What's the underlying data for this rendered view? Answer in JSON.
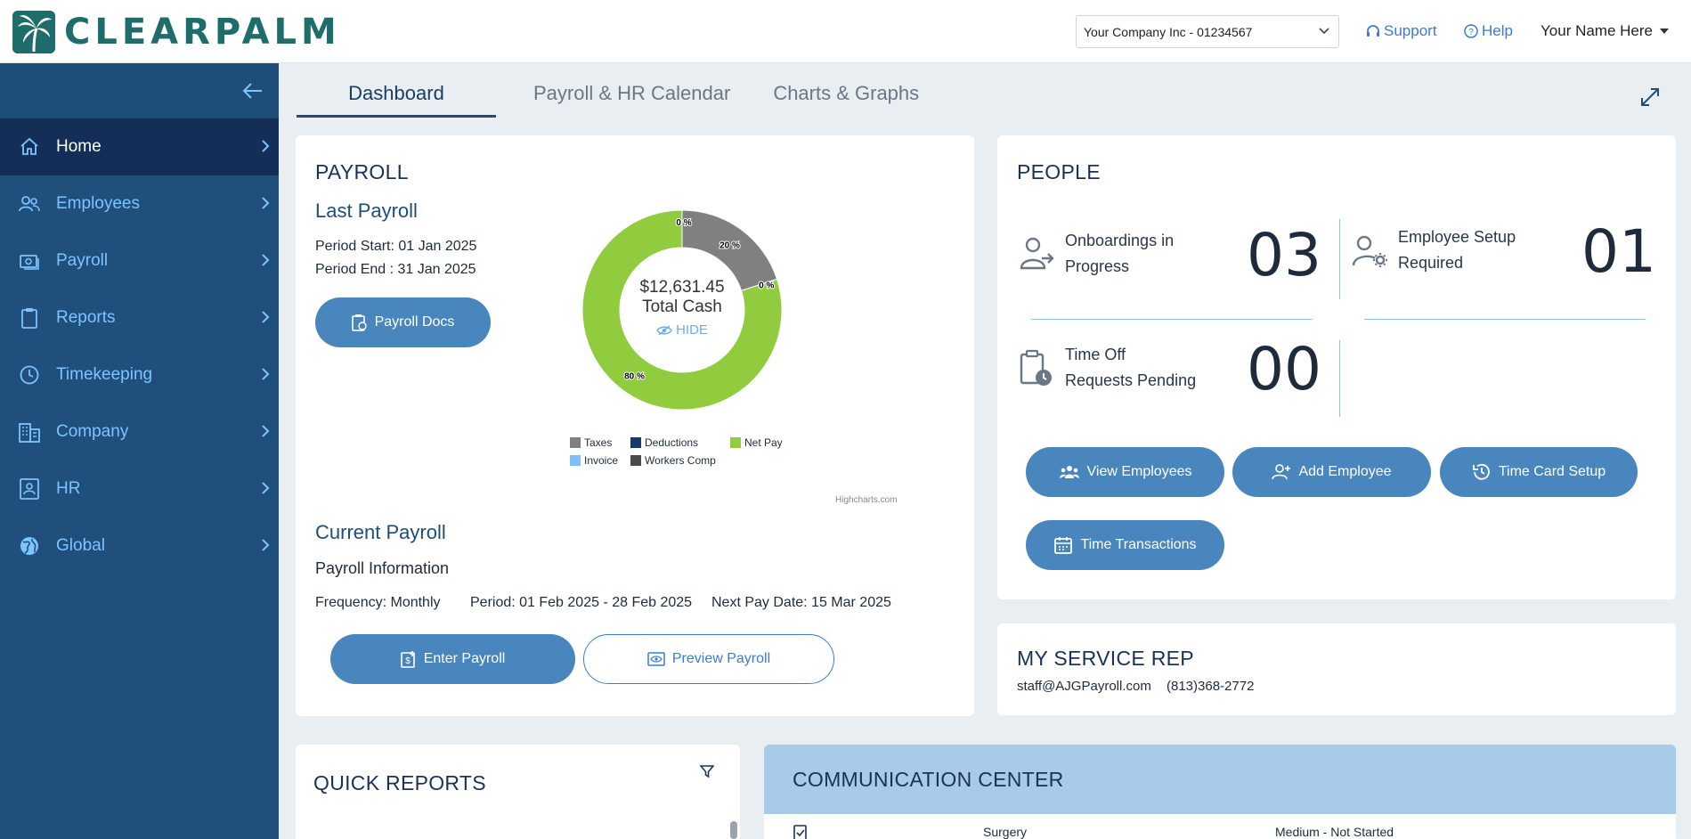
{
  "header": {
    "logo_text": "CLEARPALM",
    "company_select": "Your Company Inc - 01234567",
    "support": "Support",
    "help": "Help",
    "user": "Your Name Here"
  },
  "sidebar": {
    "items": [
      {
        "label": "Home",
        "icon": "home-icon"
      },
      {
        "label": "Employees",
        "icon": "people-icon"
      },
      {
        "label": "Payroll",
        "icon": "payroll-icon"
      },
      {
        "label": "Reports",
        "icon": "clipboard-icon"
      },
      {
        "label": "Timekeeping",
        "icon": "clock-icon"
      },
      {
        "label": "Company",
        "icon": "building-icon"
      },
      {
        "label": "HR",
        "icon": "id-card-icon"
      },
      {
        "label": "Global",
        "icon": "globe-icon"
      }
    ]
  },
  "tabs": [
    "Dashboard",
    "Payroll & HR Calendar",
    "Charts & Graphs"
  ],
  "payroll": {
    "title": "PAYROLL",
    "last_payroll": "Last Payroll",
    "period_start": "Period Start: 01 Jan 2025",
    "period_end": "Period End : 31 Jan 2025",
    "docs_button": "Payroll Docs",
    "current_payroll": "Current Payroll",
    "info": "Payroll Information",
    "frequency": "Frequency: Monthly",
    "period": "Period: 01 Feb 2025 - 28 Feb 2025",
    "next_pay": "Next Pay Date: 15 Mar 2025",
    "enter_button": "Enter Payroll",
    "preview_button": "Preview Payroll",
    "credit": "Highcharts.com",
    "center_amount": "$12,631.45",
    "center_label": "Total Cash",
    "hide": "HIDE"
  },
  "chart_data": {
    "type": "pie",
    "title": "",
    "slices": [
      {
        "name": "Taxes",
        "value": 20,
        "label": "20 %",
        "color": "#808080"
      },
      {
        "name": "Deductions",
        "value": 0,
        "label": "0 %",
        "color": "#1c3a66"
      },
      {
        "name": "Net Pay",
        "value": 80,
        "label": "80 %",
        "color": "#90cc3e"
      },
      {
        "name": "Invoice",
        "value": 0,
        "label": "0 %",
        "color": "#7fbfff"
      },
      {
        "name": "Workers Comp",
        "value": 0,
        "label": "",
        "color": "#4a4a4a"
      }
    ],
    "legend": [
      "Taxes",
      "Deductions",
      "Net Pay",
      "Invoice",
      "Workers Comp"
    ],
    "legend_position": "bottom"
  },
  "people": {
    "title": "PEOPLE",
    "onboard_label": [
      "Onboardings in",
      "Progress"
    ],
    "onboard_count": "03",
    "setup_label": [
      "Employee Setup",
      "Required"
    ],
    "setup_count": "01",
    "timeoff_label": [
      "Time Off",
      "Requests Pending"
    ],
    "timeoff_count": "00",
    "buttons": [
      "View Employees",
      "Add Employee",
      "Time Card Setup",
      "Time Transactions"
    ]
  },
  "service_rep": {
    "title": "MY SERVICE REP",
    "email": "staff@AJGPayroll.com",
    "phone": "(813)368-2772"
  },
  "quick_reports": {
    "title": "QUICK REPORTS"
  },
  "communication": {
    "title": "COMMUNICATION CENTER",
    "row": [
      "Surgery",
      "Medium - Not Started"
    ]
  }
}
